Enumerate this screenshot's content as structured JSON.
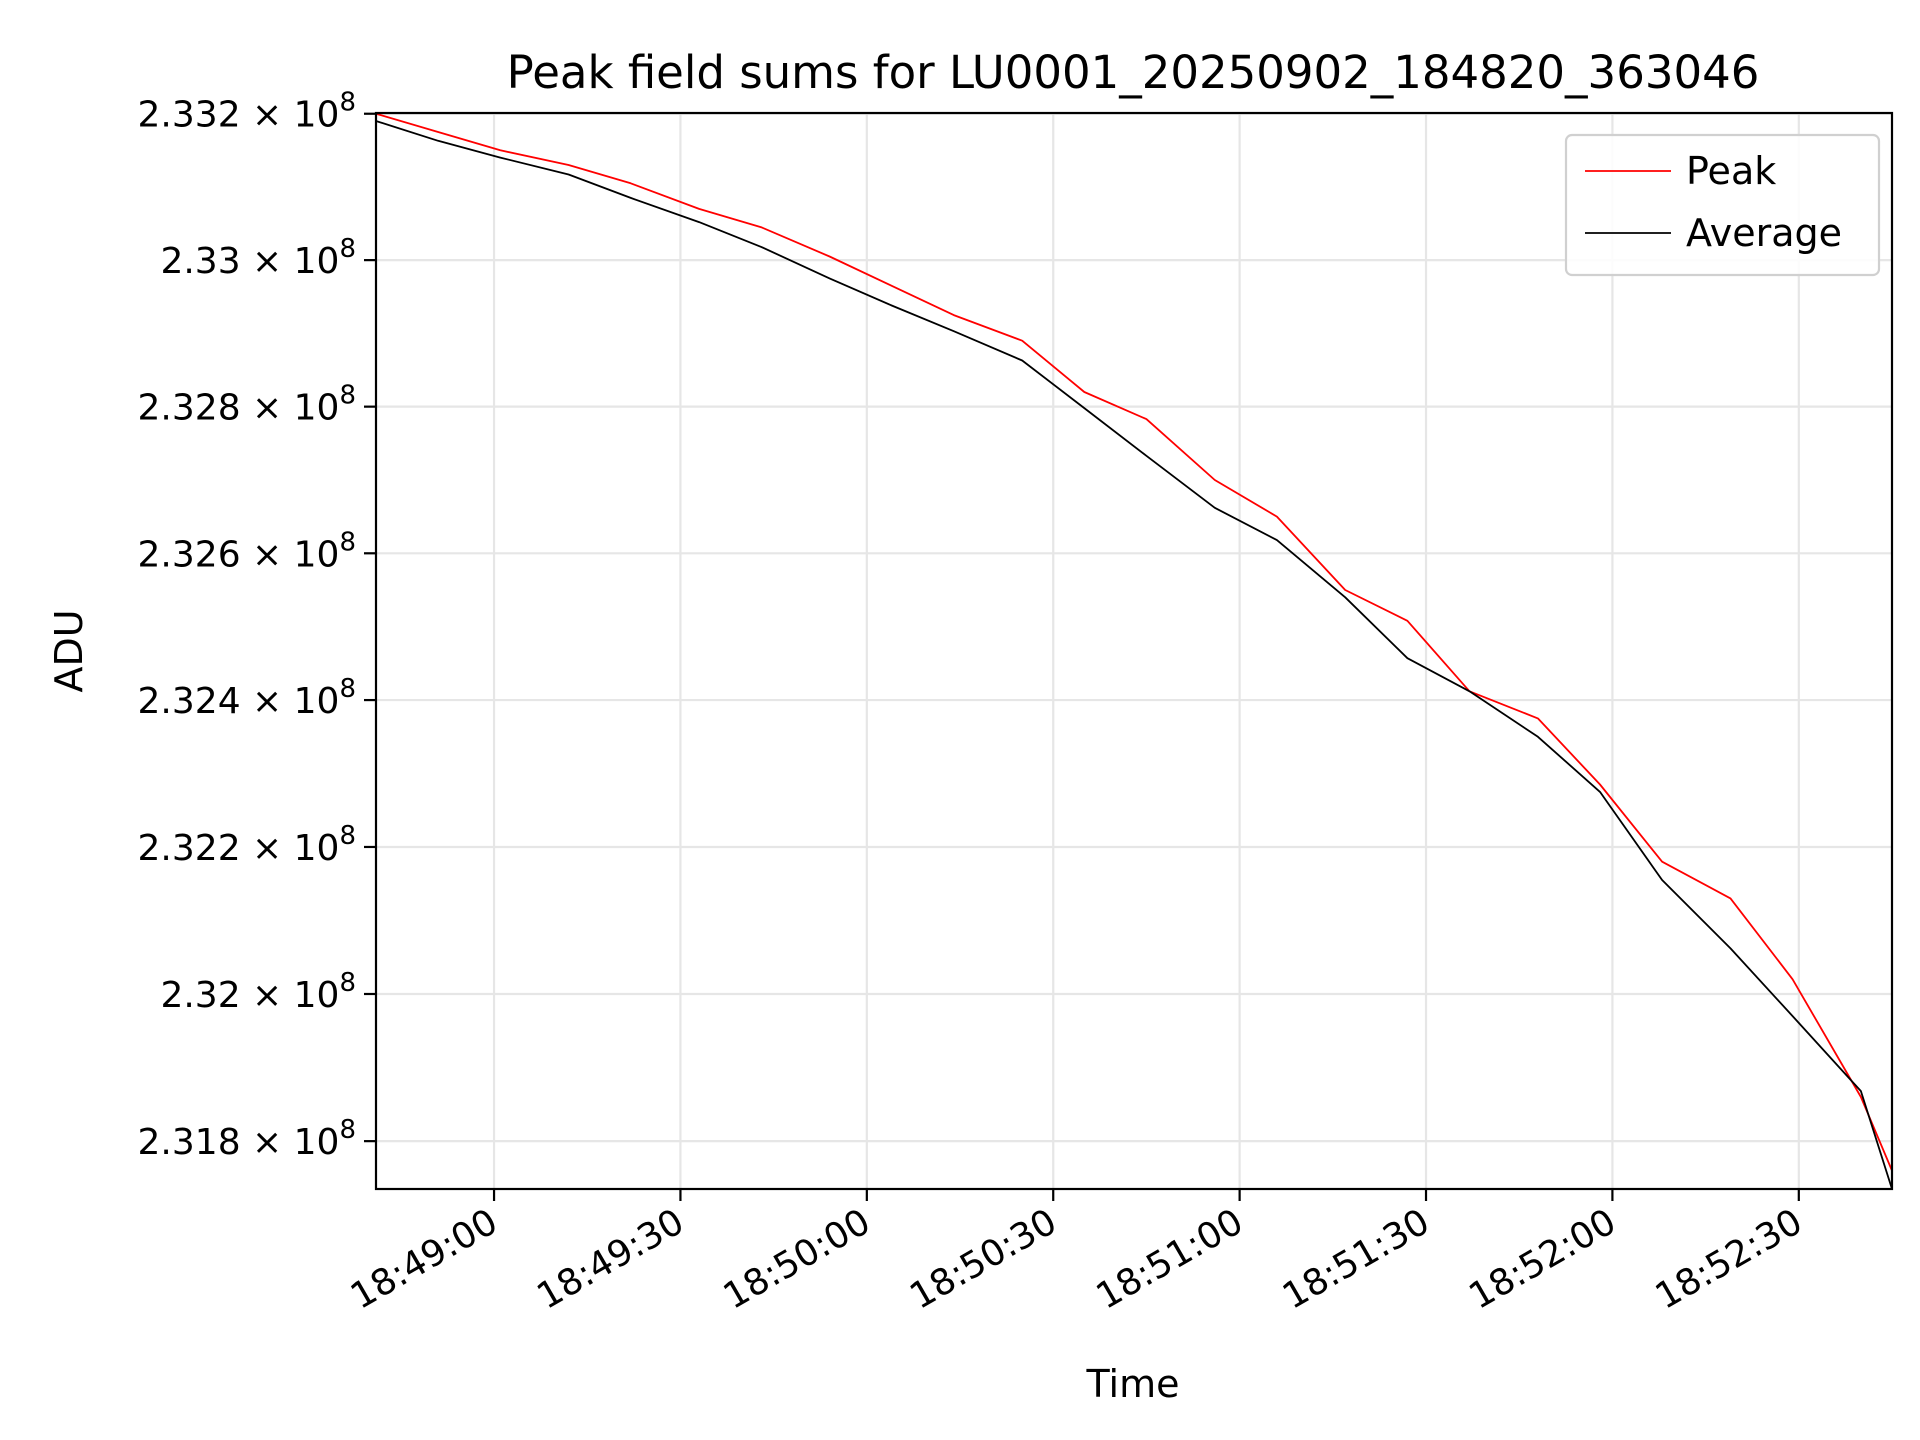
{
  "chart_data": {
    "type": "line",
    "title": "Peak field sums for LU0001_20250902_184820_363046",
    "xlabel": "Time",
    "ylabel": "ADU",
    "y_scale": "log",
    "grid": true,
    "legend_position": "top-right",
    "xlim": [
      "18:48:41",
      "18:52:45"
    ],
    "ylim": [
      231735000,
      233201000
    ],
    "x_ticks": [
      "18:49:00",
      "18:49:30",
      "18:50:00",
      "18:50:30",
      "18:51:00",
      "18:51:30",
      "18:52:00",
      "18:52:30"
    ],
    "y_ticks": [
      {
        "value": 231800000,
        "mantissa": "2.318",
        "base": "10",
        "exp": "8"
      },
      {
        "value": 232000000,
        "mantissa": "2.32",
        "base": "10",
        "exp": "8"
      },
      {
        "value": 232200000,
        "mantissa": "2.322",
        "base": "10",
        "exp": "8"
      },
      {
        "value": 232400000,
        "mantissa": "2.324",
        "base": "10",
        "exp": "8"
      },
      {
        "value": 232600000,
        "mantissa": "2.326",
        "base": "10",
        "exp": "8"
      },
      {
        "value": 232800000,
        "mantissa": "2.328",
        "base": "10",
        "exp": "8"
      },
      {
        "value": 233000000,
        "mantissa": "2.33",
        "base": "10",
        "exp": "8"
      },
      {
        "value": 233200000,
        "mantissa": "2.332",
        "base": "10",
        "exp": "8"
      }
    ],
    "x": [
      "18:48:41",
      "18:48:51",
      "18:49:01",
      "18:49:12",
      "18:49:22",
      "18:49:33",
      "18:49:43",
      "18:49:54",
      "18:50:04",
      "18:50:14",
      "18:50:25",
      "18:50:35",
      "18:50:45",
      "18:50:56",
      "18:51:06",
      "18:51:17",
      "18:51:27",
      "18:51:37",
      "18:51:48",
      "18:51:58",
      "18:52:08",
      "18:52:19",
      "18:52:29",
      "18:52:40",
      "18:52:45"
    ],
    "series": [
      {
        "name": "Peak",
        "color": "#ff0000",
        "values": [
          233200000,
          233175000,
          233150000,
          233130000,
          233105000,
          233070000,
          233045000,
          233005000,
          232965000,
          232925000,
          232890000,
          232820000,
          232783000,
          232700000,
          232650000,
          232550000,
          232508000,
          232412000,
          232375000,
          232285000,
          232180000,
          232130000,
          232020000,
          231860000,
          231760000
        ]
      },
      {
        "name": "Average",
        "color": "#000000",
        "values": [
          233190000,
          233163000,
          233140000,
          233117000,
          233085000,
          233052000,
          233018000,
          232975000,
          232938000,
          232903000,
          232863000,
          232798000,
          232733000,
          232662000,
          232618000,
          232540000,
          232457000,
          232412000,
          232350000,
          232275000,
          232155000,
          232062000,
          231970000,
          231868000,
          231735000
        ]
      }
    ]
  }
}
